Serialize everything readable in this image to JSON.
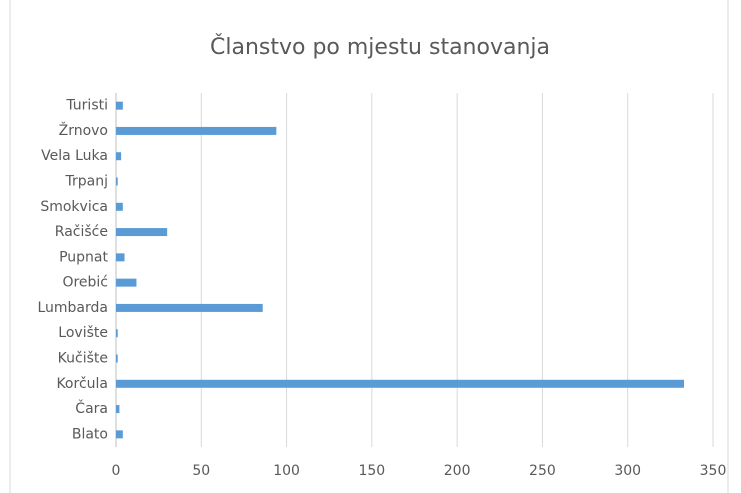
{
  "chart_data": {
    "type": "bar",
    "orientation": "horizontal",
    "title": "Članstvo po mjestu stanovanja",
    "categories": [
      "Blato",
      "Čara",
      "Korčula",
      "Kučište",
      "Lovište",
      "Lumbarda",
      "Orebić",
      "Pupnat",
      "Račišće",
      "Smokvica",
      "Trpanj",
      "Vela Luka",
      "Žrnovo",
      "Turisti"
    ],
    "values": [
      4,
      2,
      333,
      1,
      1,
      86,
      12,
      5,
      30,
      4,
      1,
      3,
      94,
      4
    ],
    "color": "#5b9bd5",
    "xlim": [
      0,
      350
    ],
    "xticks": [
      0,
      50,
      100,
      150,
      200,
      250,
      300,
      350
    ],
    "grid": true
  }
}
